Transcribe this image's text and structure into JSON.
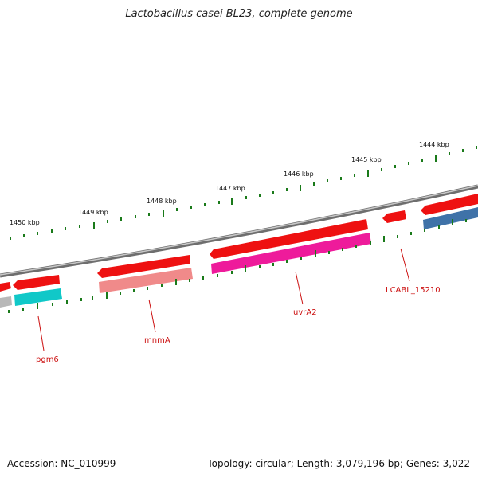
{
  "title": "Lactobacillus casei BL23, complete genome",
  "footer": {
    "accession": "Accession: NC_010999",
    "summary": "Topology: circular; Length: 3,079,196 bp; Genes: 3,022"
  },
  "colors": {
    "backbone": "#8a8a8a",
    "tick": "#1a7a1a",
    "gene_forward": "#ee1111",
    "gene_label": "#cc1111",
    "feature_cyan": "#10c8c8",
    "feature_salmon": "#f08a8a",
    "feature_magenta": "#ee1b9b",
    "feature_steelblue": "#3f72a8",
    "feature_grey": "#b8b8b8"
  },
  "scale_labels": [
    "1450 kbp",
    "1449 kbp",
    "1448 kbp",
    "1447 kbp",
    "1446 kbp",
    "1445 kbp",
    "1444 kbp"
  ],
  "gene_labels": [
    "pgm6",
    "mnmA",
    "uvrA2",
    "LCABL_15210"
  ]
}
